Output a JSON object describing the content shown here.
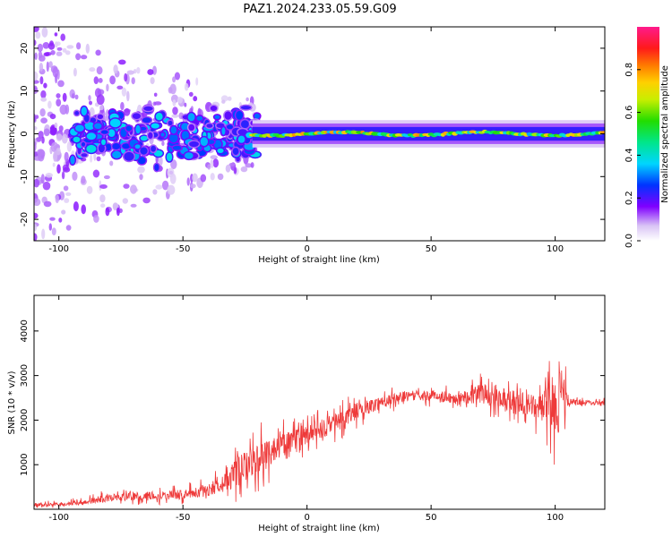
{
  "page_title": "PAZ1.2024.233.05.59.G09",
  "chart_data": [
    {
      "type": "heatmap",
      "title": "PAZ1.2024.233.05.59.G09",
      "xlabel": "Height of straight line (km)",
      "ylabel": "Frequency (Hz)",
      "xlim": [
        -110,
        120
      ],
      "ylim": [
        -25,
        25
      ],
      "xticks": [
        -100,
        -50,
        0,
        50,
        100
      ],
      "yticks": [
        -20,
        -10,
        0,
        10,
        20
      ],
      "colorbar": {
        "label": "Normalized spectral amplitude",
        "range": [
          0,
          1
        ],
        "ticks": [
          "0.0",
          "0.2",
          "0.4",
          "0.6",
          "0.8"
        ],
        "tick_values": [
          0.0,
          0.2,
          0.4,
          0.6,
          0.8
        ],
        "colormap": "rainbow (white, violet, blue, cyan, green, yellow, orange, red, magenta)"
      },
      "features": [
        {
          "name": "noise scatter",
          "x_range": [
            -110,
            -20
          ],
          "freq_spread_hz": 25,
          "amplitude": 0.1
        },
        {
          "name": "clustered blobs",
          "x_range": [
            -95,
            -20
          ],
          "freq_center_hz": 0,
          "freq_spread_hz": 6,
          "amplitude": 0.3
        },
        {
          "name": "signal ridge",
          "x_range": [
            -22,
            120
          ],
          "freq_center_hz": 0,
          "freq_width_hz": 2,
          "amplitude": 0.6
        }
      ]
    },
    {
      "type": "line",
      "xlabel": "Height of straight line (km)",
      "ylabel": "SNR (10 * v/v)",
      "xlim": [
        -110,
        120
      ],
      "ylim": [
        0,
        4800
      ],
      "xticks": [
        -100,
        -50,
        0,
        50,
        100
      ],
      "yticks": [
        1000,
        2000,
        3000,
        4000
      ],
      "color": "#ee3a3a",
      "envelope": {
        "x": [
          -110,
          -100,
          -90,
          -80,
          -70,
          -60,
          -50,
          -40,
          -30,
          -20,
          -10,
          0,
          10,
          20,
          30,
          40,
          50,
          60,
          70,
          80,
          90,
          95,
          100,
          103,
          105,
          110,
          120
        ],
        "mean": [
          100,
          110,
          150,
          260,
          280,
          310,
          330,
          420,
          750,
          1150,
          1450,
          1650,
          1900,
          2200,
          2400,
          2550,
          2550,
          2500,
          2600,
          2500,
          2300,
          2300,
          2400,
          2500,
          2400,
          2400,
          2400
        ],
        "spread": [
          80,
          90,
          130,
          200,
          200,
          210,
          240,
          300,
          700,
          800,
          600,
          500,
          500,
          400,
          300,
          250,
          250,
          300,
          500,
          550,
          600,
          700,
          1500,
          1900,
          200,
          120,
          100
        ]
      }
    }
  ]
}
